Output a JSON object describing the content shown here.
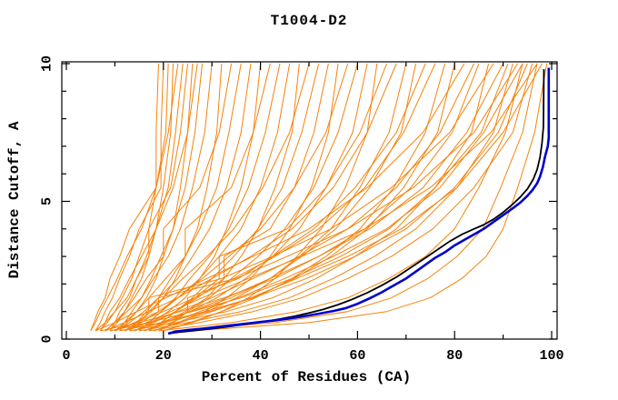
{
  "title": "T1004-D2",
  "chart_data": {
    "type": "line",
    "title": "T1004-D2",
    "xlabel": "Percent of Residues (CA)",
    "ylabel": "Distance Cutoff, A",
    "xlim": [
      0,
      100
    ],
    "ylim": [
      0,
      10
    ],
    "grid": false,
    "legend": "none",
    "x_major_ticks": [
      0,
      20,
      40,
      60,
      80,
      100
    ],
    "x_minor_ticks": [
      10,
      30,
      50,
      70,
      90
    ],
    "y_major_ticks": [
      0,
      5,
      10
    ],
    "y_minor_ticks": [
      1,
      2,
      3,
      4,
      6,
      7,
      8,
      9
    ],
    "colors": {
      "model_orange": "#f5820a",
      "highlight_blue": "#0000cd",
      "reference_black": "#000000",
      "axis": "#000000",
      "background": "#ffffff"
    },
    "cutoff_levels": [
      0.3,
      0.6,
      1,
      1.5,
      2.2,
      3,
      4,
      5.5,
      7.5,
      10
    ],
    "model_curves_percent_at_levels": [
      [
        5,
        5.7,
        6.5,
        8,
        9,
        11,
        13,
        18.5,
        18.5,
        19
      ],
      [
        6,
        7,
        8,
        9.5,
        11,
        13,
        15,
        19.5,
        19.5,
        20
      ],
      [
        7,
        8.4,
        10,
        11.5,
        13.5,
        15,
        17,
        18.5,
        20.5,
        21
      ],
      [
        8,
        10,
        12,
        13.5,
        15.5,
        17,
        18.5,
        20,
        21.5,
        22
      ],
      [
        5,
        6,
        7,
        8.5,
        10.5,
        12.5,
        15.5,
        18.5,
        21,
        23
      ],
      [
        9,
        10,
        11,
        13,
        14.5,
        16.5,
        18.5,
        21,
        22.5,
        24
      ],
      [
        6,
        8,
        10,
        12.5,
        14.5,
        17,
        17,
        21.5,
        23.5,
        25
      ],
      [
        10,
        12,
        14.5,
        16.5,
        18.5,
        20,
        22,
        23.5,
        25,
        26
      ],
      [
        7,
        8,
        9,
        11,
        13,
        15.5,
        18.5,
        22,
        25,
        27
      ],
      [
        11,
        12,
        13.5,
        15.5,
        17.5,
        19.5,
        22,
        24.5,
        26.5,
        28
      ],
      [
        8,
        10,
        12.5,
        15.5,
        18,
        21,
        23.5,
        26,
        28.5,
        30
      ],
      [
        12,
        14.5,
        17.5,
        20,
        22.5,
        24.5,
        27,
        29,
        31,
        32
      ],
      [
        9,
        10.5,
        12,
        14,
        16.5,
        20,
        20,
        27.5,
        31.5,
        34
      ],
      [
        13,
        14.5,
        16.5,
        19,
        21.5,
        24.5,
        27.5,
        31,
        33.5,
        36
      ],
      [
        10,
        13,
        16,
        19,
        23,
        26,
        29.5,
        33,
        36,
        38
      ],
      [
        14,
        17.5,
        21,
        24.5,
        27.5,
        30.5,
        33,
        36,
        38.5,
        40
      ],
      [
        11,
        12.5,
        14.5,
        17,
        20.5,
        24.5,
        24.5,
        34,
        38.5,
        42
      ],
      [
        15,
        17,
        19.5,
        22.5,
        25.5,
        29.5,
        33.5,
        37.5,
        41,
        44
      ],
      [
        12,
        15.5,
        19,
        23,
        27.5,
        31.5,
        36,
        40,
        43.5,
        46
      ],
      [
        16,
        20,
        24.5,
        29,
        32.5,
        36,
        39.5,
        43,
        46.5,
        48
      ],
      [
        13,
        15,
        17,
        20,
        24,
        29,
        34.5,
        40.5,
        46,
        50
      ],
      [
        17,
        19.5,
        22.5,
        26,
        30,
        34.5,
        39.5,
        44.5,
        48.5,
        52
      ],
      [
        14,
        18,
        22.5,
        27,
        32.5,
        32.5,
        42,
        47,
        51,
        54
      ],
      [
        18,
        23,
        28.5,
        33,
        38,
        42,
        46,
        50.5,
        54,
        56
      ],
      [
        15,
        17,
        19.5,
        23,
        28,
        33.5,
        40,
        47,
        53.5,
        58
      ],
      [
        19,
        22,
        25,
        29.5,
        34,
        39.5,
        45,
        51,
        56,
        60
      ],
      [
        16,
        20.5,
        25.5,
        31,
        37,
        42.5,
        48,
        53.5,
        59,
        62
      ],
      [
        20,
        25.5,
        32,
        37.5,
        43,
        47.5,
        52.5,
        57.5,
        62,
        64
      ],
      [
        17,
        19.5,
        22.5,
        26.5,
        31.5,
        31.5,
        45.5,
        53.5,
        60.5,
        66
      ],
      [
        8,
        12,
        17,
        23,
        30,
        38,
        46.5,
        55,
        62,
        68
      ],
      [
        18,
        23,
        29,
        35,
        42,
        48,
        54.5,
        60.5,
        66.5,
        70
      ],
      [
        9,
        17,
        26,
        34,
        42,
        48.5,
        55.5,
        62.5,
        69,
        72
      ],
      [
        19,
        22,
        25,
        25,
        35.5,
        42.5,
        51,
        59.5,
        68,
        74
      ],
      [
        10,
        14.5,
        20,
        26.5,
        34.5,
        43,
        52,
        61.5,
        69.5,
        76
      ],
      [
        20,
        26,
        32,
        39,
        46.5,
        53.5,
        60.5,
        67.5,
        74,
        78
      ],
      [
        11,
        20,
        29.5,
        38.5,
        47,
        54.5,
        62,
        69.5,
        76.5,
        80
      ],
      [
        6,
        10,
        14.5,
        20.5,
        29,
        38.5,
        50,
        62,
        73.5,
        82
      ],
      [
        12,
        17,
        23,
        30,
        38.5,
        48,
        58,
        68,
        77,
        84
      ],
      [
        7,
        15,
        23.5,
        32.5,
        43,
        52,
        61.5,
        71,
        79.5,
        85
      ],
      [
        13,
        22.5,
        33,
        42.5,
        51.5,
        59.5,
        68,
        76,
        83.5,
        87
      ],
      [
        8,
        12,
        17,
        17,
        32,
        42.5,
        54.5,
        67,
        79,
        88
      ],
      [
        14,
        19.5,
        25.5,
        33,
        42,
        52,
        62.5,
        73.5,
        82.5,
        90
      ],
      [
        9,
        17,
        26,
        36,
        46.5,
        56.5,
        66.5,
        76,
        85.5,
        91
      ],
      [
        15,
        25,
        36,
        46,
        55,
        63.5,
        72,
        80.5,
        88,
        92
      ],
      [
        10,
        14,
        19,
        19,
        35,
        45.5,
        58,
        71.5,
        84,
        93
      ],
      [
        16,
        21.5,
        27.5,
        35.5,
        45,
        55,
        66,
        77,
        86,
        94
      ],
      [
        11,
        19.5,
        28.5,
        38.5,
        49.5,
        59.5,
        70,
        80,
        89,
        95
      ],
      [
        17,
        27.5,
        38.5,
        48.5,
        58,
        67,
        75.5,
        84,
        92,
        96
      ],
      [
        12,
        16.5,
        21.5,
        28,
        37.5,
        48.5,
        61.5,
        75,
        87.5,
        97
      ],
      [
        18,
        23.5,
        30,
        38,
        47.5,
        58,
        69,
        80.5,
        90,
        98
      ],
      [
        22,
        43,
        58,
        67,
        74.5,
        80.5,
        85.8,
        89.5,
        94,
        97
      ],
      [
        26,
        50,
        66,
        75,
        81.5,
        86.5,
        90,
        93,
        96.5,
        99
      ],
      [
        19,
        34,
        47.5,
        58,
        66.5,
        74,
        80,
        85,
        90.5,
        94
      ]
    ],
    "reference_curve_black": [
      [
        21,
        0.2
      ],
      [
        23,
        0.25
      ],
      [
        26,
        0.3
      ],
      [
        29,
        0.36
      ],
      [
        32,
        0.42
      ],
      [
        35,
        0.49
      ],
      [
        38,
        0.56
      ],
      [
        41,
        0.64
      ],
      [
        44,
        0.73
      ],
      [
        47,
        0.83
      ],
      [
        50,
        0.95
      ],
      [
        53,
        1.08
      ],
      [
        56,
        1.25
      ],
      [
        59,
        1.45
      ],
      [
        62,
        1.68
      ],
      [
        65,
        1.95
      ],
      [
        68,
        2.25
      ],
      [
        71,
        2.6
      ],
      [
        74,
        2.95
      ],
      [
        76.5,
        3.25
      ],
      [
        79,
        3.55
      ],
      [
        81.5,
        3.8
      ],
      [
        84,
        4.0
      ],
      [
        86,
        4.15
      ],
      [
        88,
        4.35
      ],
      [
        90,
        4.6
      ],
      [
        92,
        4.9
      ],
      [
        93.5,
        5.15
      ],
      [
        95,
        5.45
      ],
      [
        96.2,
        5.8
      ],
      [
        97,
        6.15
      ],
      [
        97.6,
        6.6
      ],
      [
        98,
        7.1
      ],
      [
        98.3,
        7.7
      ],
      [
        98.4,
        9.8
      ]
    ],
    "highlight_curve_blue": [
      [
        21,
        0.2
      ],
      [
        22.5,
        0.27
      ],
      [
        25,
        0.33
      ],
      [
        28,
        0.38
      ],
      [
        31,
        0.44
      ],
      [
        34,
        0.5
      ],
      [
        37,
        0.56
      ],
      [
        40,
        0.62
      ],
      [
        43,
        0.68
      ],
      [
        46,
        0.75
      ],
      [
        49,
        0.83
      ],
      [
        52,
        0.92
      ],
      [
        55,
        1.02
      ],
      [
        57.5,
        1.12
      ],
      [
        60,
        1.28
      ],
      [
        62.5,
        1.48
      ],
      [
        65,
        1.7
      ],
      [
        67.5,
        1.95
      ],
      [
        70,
        2.2
      ],
      [
        72,
        2.45
      ],
      [
        74,
        2.7
      ],
      [
        76,
        2.95
      ],
      [
        78,
        3.15
      ],
      [
        80,
        3.4
      ],
      [
        82,
        3.6
      ],
      [
        84,
        3.8
      ],
      [
        86,
        4.0
      ],
      [
        88,
        4.25
      ],
      [
        90,
        4.5
      ],
      [
        92,
        4.75
      ],
      [
        93.5,
        4.95
      ],
      [
        95,
        5.2
      ],
      [
        96,
        5.4
      ],
      [
        97,
        5.65
      ],
      [
        97.6,
        5.9
      ],
      [
        98.2,
        6.25
      ],
      [
        98.6,
        6.6
      ],
      [
        99.2,
        7.0
      ],
      [
        99.4,
        7.3
      ],
      [
        99.4,
        9.85
      ]
    ]
  }
}
